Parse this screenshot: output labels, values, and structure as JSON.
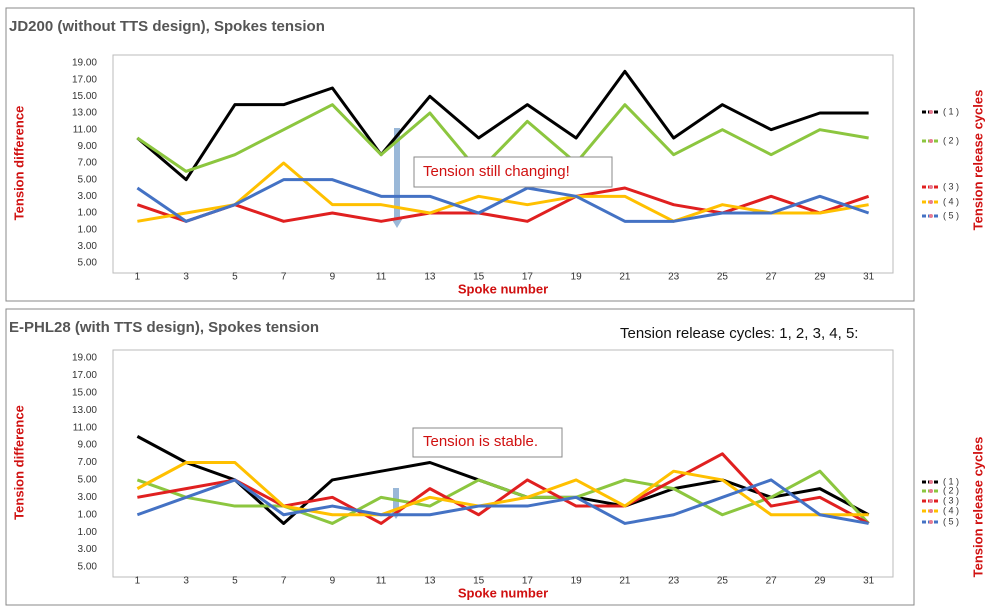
{
  "chart_data": [
    {
      "type": "line",
      "title": "JD200 (without TTS design), Spokes tension",
      "x_label": "Spoke number",
      "y_label": "Tension difference",
      "legend_title": "Tension release cycles",
      "annotations": [
        "Tension still changing!"
      ],
      "categories": [
        "1",
        "3",
        "5",
        "7",
        "9",
        "11",
        "13",
        "15",
        "17",
        "19",
        "21",
        "23",
        "25",
        "27",
        "29",
        "31"
      ],
      "ylim": [
        -5,
        19
      ],
      "yticks": [
        {
          "value": 19,
          "label": "19.00"
        },
        {
          "value": 17,
          "label": "17.00"
        },
        {
          "value": 15,
          "label": "15.00"
        },
        {
          "value": 13,
          "label": "13.00"
        },
        {
          "value": 11,
          "label": "11.00"
        },
        {
          "value": 9,
          "label": "9.00"
        },
        {
          "value": 7,
          "label": "7.00"
        },
        {
          "value": 5,
          "label": "5.00"
        },
        {
          "value": 3,
          "label": "3.00"
        },
        {
          "value": 1,
          "label": "1.00"
        },
        {
          "value": -1,
          "label": "1.00"
        },
        {
          "value": -3,
          "label": "3.00"
        },
        {
          "value": -5,
          "label": "5.00"
        }
      ],
      "grid": false,
      "series": [
        {
          "name": "( 1 )",
          "color": "#000000",
          "values": [
            10,
            5,
            14,
            14,
            16,
            8,
            15,
            10,
            14,
            10,
            18,
            10,
            14,
            11,
            13,
            13
          ]
        },
        {
          "name": "( 2 )",
          "color": "#8cc63f",
          "values": [
            10,
            6,
            8,
            11,
            14,
            8,
            13,
            6,
            12,
            7,
            14,
            8,
            11,
            8,
            11,
            10
          ]
        },
        {
          "name": "( 3 )",
          "color": "#e02020",
          "values": [
            2,
            0,
            2,
            0,
            1,
            0,
            1,
            1,
            0,
            3,
            4,
            2,
            1,
            3,
            1,
            3
          ]
        },
        {
          "name": "( 4 )",
          "color": "#ffc000",
          "values": [
            0,
            1,
            2,
            7,
            2,
            2,
            1,
            3,
            2,
            3,
            3,
            0,
            2,
            1,
            1,
            2
          ]
        },
        {
          "name": "( 5 )",
          "color": "#4472c4",
          "values": [
            4,
            0,
            2,
            5,
            5,
            3,
            3,
            1,
            4,
            3,
            0,
            0,
            1,
            1,
            3,
            1
          ]
        }
      ]
    },
    {
      "type": "line",
      "title": "E-PHL28 (with TTS design), Spokes tension",
      "x_label": "Spoke number",
      "y_label": "Tension difference",
      "legend_title": "Tension release cycles",
      "annotations": [
        "Tension is stable.",
        "Tension release cycles: 1, 2, 3, 4, 5:"
      ],
      "categories": [
        "1",
        "3",
        "5",
        "7",
        "9",
        "11",
        "13",
        "15",
        "17",
        "19",
        "21",
        "23",
        "25",
        "27",
        "29",
        "31"
      ],
      "ylim": [
        -5,
        19
      ],
      "yticks": [
        {
          "value": 19,
          "label": "19.00"
        },
        {
          "value": 17,
          "label": "17.00"
        },
        {
          "value": 15,
          "label": "15.00"
        },
        {
          "value": 13,
          "label": "13.00"
        },
        {
          "value": 11,
          "label": "11.00"
        },
        {
          "value": 9,
          "label": "9.00"
        },
        {
          "value": 7,
          "label": "7.00"
        },
        {
          "value": 5,
          "label": "5.00"
        },
        {
          "value": 3,
          "label": "3.00"
        },
        {
          "value": 1,
          "label": "1.00"
        },
        {
          "value": -1,
          "label": "1.00"
        },
        {
          "value": -3,
          "label": "3.00"
        },
        {
          "value": -5,
          "label": "5.00"
        }
      ],
      "grid": false,
      "series": [
        {
          "name": "( 1 )",
          "color": "#000000",
          "values": [
            10,
            7,
            5,
            0,
            5,
            6,
            7,
            5,
            3,
            3,
            2,
            4,
            5,
            3,
            4,
            1
          ]
        },
        {
          "name": "( 2 )",
          "color": "#8cc63f",
          "values": [
            5,
            3,
            2,
            2,
            0,
            3,
            2,
            5,
            3,
            3,
            5,
            4,
            1,
            3,
            6,
            0
          ]
        },
        {
          "name": "( 3 )",
          "color": "#e02020",
          "values": [
            3,
            4,
            5,
            2,
            3,
            0,
            4,
            1,
            5,
            2,
            2,
            5,
            8,
            2,
            3,
            0
          ]
        },
        {
          "name": "( 4 )",
          "color": "#ffc000",
          "values": [
            4,
            7,
            7,
            2,
            1,
            1,
            3,
            2,
            3,
            5,
            2,
            6,
            5,
            1,
            1,
            1
          ]
        },
        {
          "name": "( 5 )",
          "color": "#4472c4",
          "values": [
            1,
            3,
            5,
            1,
            2,
            1,
            1,
            2,
            2,
            3,
            0,
            1,
            3,
            5,
            1,
            0
          ]
        }
      ]
    }
  ]
}
